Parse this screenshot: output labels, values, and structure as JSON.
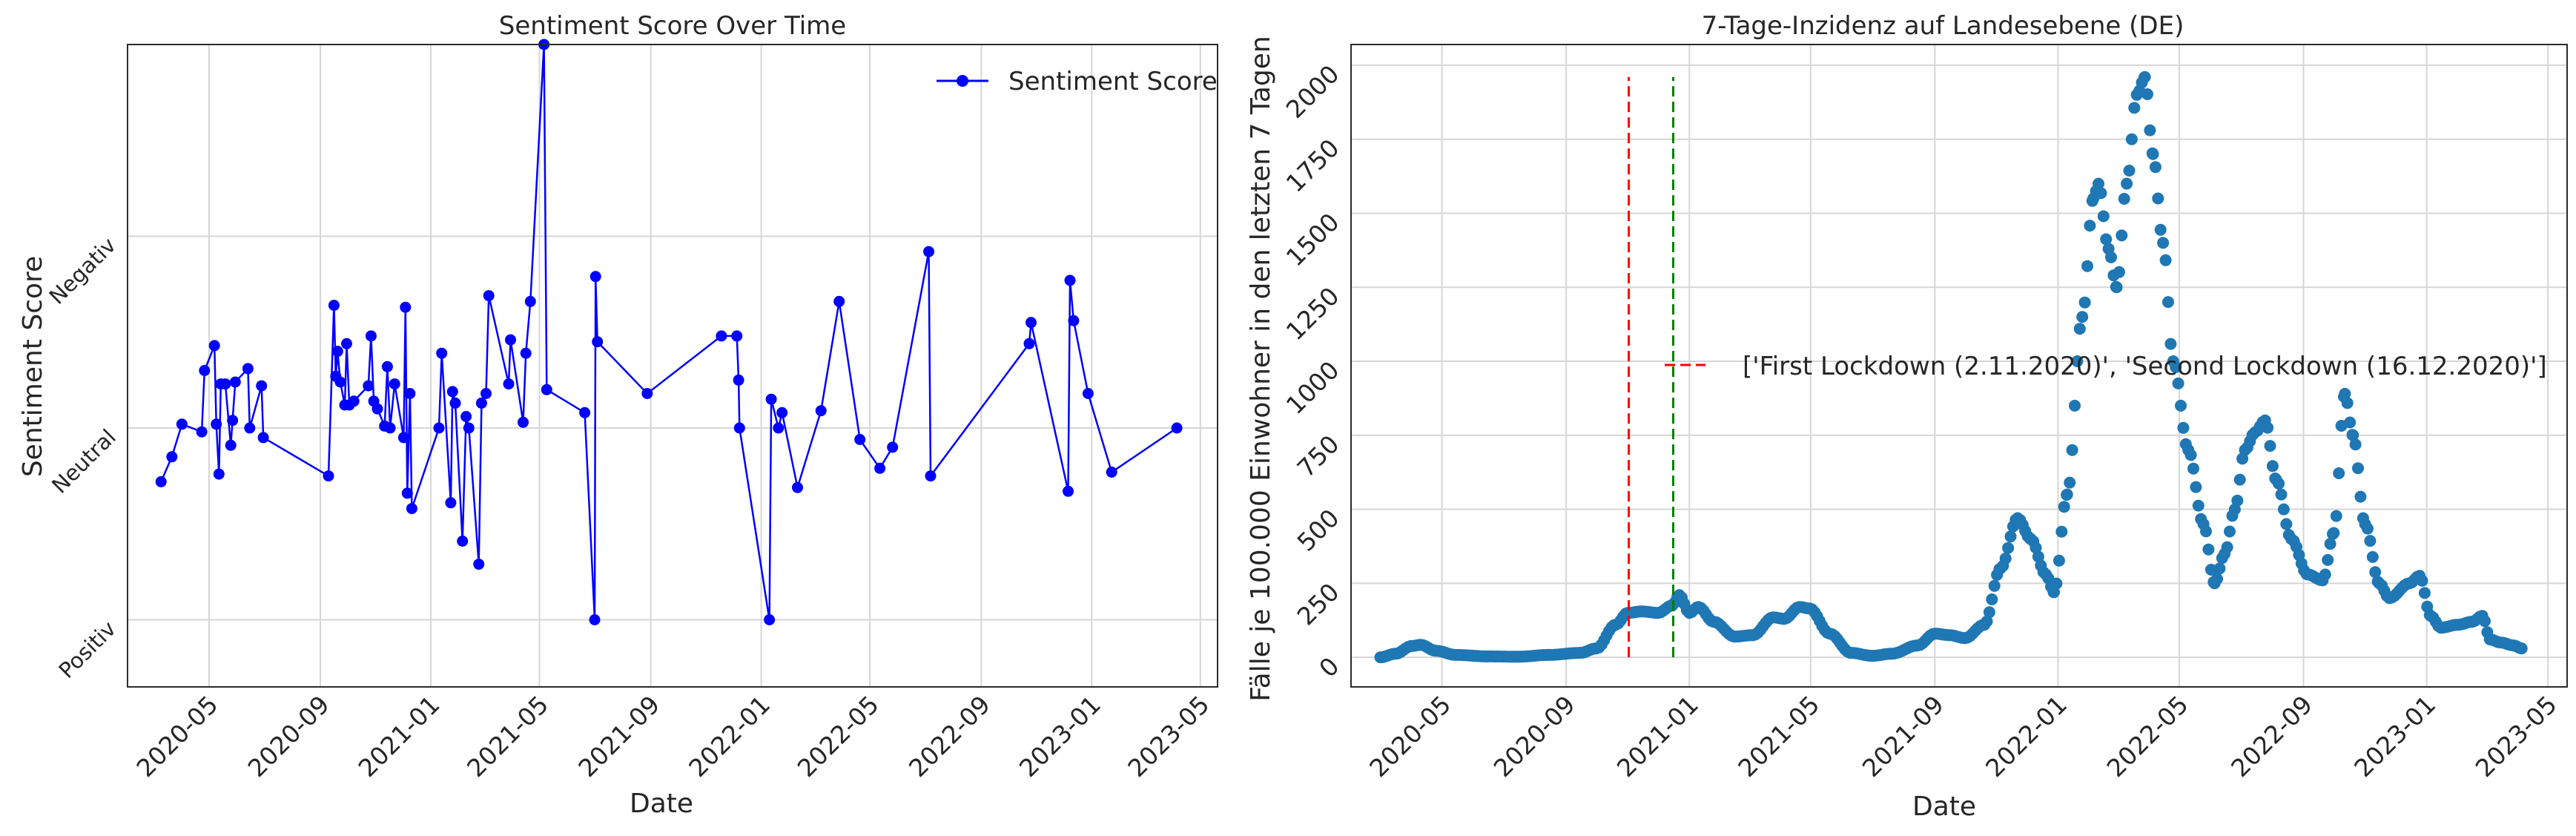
{
  "chart_data": [
    {
      "type": "line",
      "title": "Sentiment Score Over Time",
      "xlabel": "Date",
      "ylabel": "Sentiment Score",
      "x_ticks": [
        "2020-05",
        "2020-09",
        "2021-01",
        "2021-05",
        "2021-09",
        "2022-01",
        "2022-05",
        "2022-09",
        "2023-01",
        "2023-05"
      ],
      "y_ticks": [
        {
          "label": "Positiv",
          "value": -1
        },
        {
          "label": "Neutral",
          "value": 0
        },
        {
          "label": "Negativ",
          "value": 1
        }
      ],
      "xlim": [
        "2020-02-01",
        "2023-05-20"
      ],
      "ylim": [
        -1.35,
        2.0
      ],
      "grid": true,
      "legend": "top-right",
      "series": [
        {
          "name": "Sentiment Score",
          "color": "#0000ff",
          "points": [
            [
              "2020-03-09",
              -0.28
            ],
            [
              "2020-03-21",
              -0.15
            ],
            [
              "2020-04-01",
              0.02
            ],
            [
              "2020-04-23",
              -0.02
            ],
            [
              "2020-04-26",
              0.3
            ],
            [
              "2020-05-07",
              0.43
            ],
            [
              "2020-05-09",
              0.02
            ],
            [
              "2020-05-12",
              -0.24
            ],
            [
              "2020-05-14",
              0.23
            ],
            [
              "2020-05-19",
              0.23
            ],
            [
              "2020-05-25",
              -0.09
            ],
            [
              "2020-05-27",
              0.04
            ],
            [
              "2020-05-30",
              0.24
            ],
            [
              "2020-06-13",
              0.31
            ],
            [
              "2020-06-15",
              0.0
            ],
            [
              "2020-06-28",
              0.22
            ],
            [
              "2020-06-30",
              -0.05
            ],
            [
              "2020-09-10",
              -0.25
            ],
            [
              "2020-09-16",
              0.64
            ],
            [
              "2020-09-18",
              0.27
            ],
            [
              "2020-09-20",
              0.4
            ],
            [
              "2020-09-23",
              0.24
            ],
            [
              "2020-09-28",
              0.12
            ],
            [
              "2020-09-30",
              0.44
            ],
            [
              "2020-10-03",
              0.12
            ],
            [
              "2020-10-08",
              0.14
            ],
            [
              "2020-10-24",
              0.22
            ],
            [
              "2020-10-27",
              0.48
            ],
            [
              "2020-10-30",
              0.14
            ],
            [
              "2020-11-03",
              0.1
            ],
            [
              "2020-11-11",
              0.01
            ],
            [
              "2020-11-14",
              0.32
            ],
            [
              "2020-11-17",
              0.0
            ],
            [
              "2020-11-22",
              0.23
            ],
            [
              "2020-12-02",
              -0.05
            ],
            [
              "2020-12-04",
              0.63
            ],
            [
              "2020-12-06",
              -0.34
            ],
            [
              "2020-12-09",
              0.18
            ],
            [
              "2020-12-11",
              -0.42
            ],
            [
              "2021-01-10",
              0.0
            ],
            [
              "2021-01-13",
              0.39
            ],
            [
              "2021-01-23",
              -0.39
            ],
            [
              "2021-01-25",
              0.19
            ],
            [
              "2021-01-28",
              0.13
            ],
            [
              "2021-02-05",
              -0.59
            ],
            [
              "2021-02-09",
              0.06
            ],
            [
              "2021-02-12",
              0.0
            ],
            [
              "2021-02-23",
              -0.71
            ],
            [
              "2021-02-26",
              0.13
            ],
            [
              "2021-03-03",
              0.18
            ],
            [
              "2021-03-06",
              0.69
            ],
            [
              "2021-03-28",
              0.23
            ],
            [
              "2021-03-30",
              0.46
            ],
            [
              "2021-04-13",
              0.03
            ],
            [
              "2021-04-16",
              0.39
            ],
            [
              "2021-04-21",
              0.66
            ],
            [
              "2021-05-06",
              2.0
            ],
            [
              "2021-05-09",
              0.2
            ],
            [
              "2021-06-20",
              0.08
            ],
            [
              "2021-07-01",
              -1.0
            ],
            [
              "2021-07-02",
              0.79
            ],
            [
              "2021-07-04",
              0.45
            ],
            [
              "2021-08-28",
              0.18
            ],
            [
              "2021-11-18",
              0.48
            ],
            [
              "2021-12-05",
              0.48
            ],
            [
              "2021-12-07",
              0.25
            ],
            [
              "2021-12-08",
              0.0
            ],
            [
              "2022-01-10",
              -1.0
            ],
            [
              "2022-01-12",
              0.15
            ],
            [
              "2022-01-20",
              0.0
            ],
            [
              "2022-01-24",
              0.08
            ],
            [
              "2022-02-10",
              -0.31
            ],
            [
              "2022-03-08",
              0.09
            ],
            [
              "2022-03-28",
              0.66
            ],
            [
              "2022-04-20",
              -0.06
            ],
            [
              "2022-05-12",
              -0.21
            ],
            [
              "2022-05-26",
              -0.1
            ],
            [
              "2022-07-05",
              0.92
            ],
            [
              "2022-07-07",
              -0.25
            ],
            [
              "2022-10-24",
              0.44
            ],
            [
              "2022-10-26",
              0.55
            ],
            [
              "2022-12-06",
              -0.33
            ],
            [
              "2022-12-08",
              0.77
            ],
            [
              "2022-12-12",
              0.56
            ],
            [
              "2022-12-28",
              0.18
            ],
            [
              "2023-01-23",
              -0.23
            ],
            [
              "2023-04-05",
              0.0
            ]
          ]
        }
      ]
    },
    {
      "type": "scatter",
      "title": "7-Tage-Inzidenz auf Landesebene (DE)",
      "xlabel": "Date",
      "ylabel": "Fälle je 100.000 Einwohner in den letzten 7 Tagen",
      "x_ticks": [
        "2020-05",
        "2020-09",
        "2021-01",
        "2021-05",
        "2021-09",
        "2022-01",
        "2022-05",
        "2022-09",
        "2023-01",
        "2023-05"
      ],
      "y_ticks": [
        0,
        250,
        500,
        750,
        1000,
        1250,
        1500,
        1750,
        2000
      ],
      "xlim": [
        "2020-02-01",
        "2023-05-20"
      ],
      "ylim": [
        -100,
        2070
      ],
      "grid": true,
      "legend": "center",
      "legend_label": "['First Lockdown (2.11.2020)', 'Second Lockdown (16.12.2020)']",
      "vlines": [
        {
          "date": "2020-11-02",
          "color": "#ff0000",
          "ymin": 0,
          "ymax": 1960
        },
        {
          "date": "2020-12-16",
          "color": "#008000",
          "ymin": 0,
          "ymax": 1960
        }
      ],
      "series": [
        {
          "name": "Fälle je 100.000 Einwohner in den letzten 7 Tagen",
          "color": "#1f77b4",
          "keypoints": [
            [
              "2020-03-01",
              0
            ],
            [
              "2020-03-16",
              12
            ],
            [
              "2020-04-01",
              38
            ],
            [
              "2020-04-10",
              42
            ],
            [
              "2020-04-25",
              22
            ],
            [
              "2020-05-15",
              8
            ],
            [
              "2020-06-15",
              3
            ],
            [
              "2020-07-15",
              2
            ],
            [
              "2020-08-15",
              8
            ],
            [
              "2020-09-15",
              15
            ],
            [
              "2020-10-01",
              30
            ],
            [
              "2020-10-20",
              110
            ],
            [
              "2020-11-01",
              150
            ],
            [
              "2020-11-15",
              155
            ],
            [
              "2020-12-01",
              150
            ],
            [
              "2020-12-15",
              175
            ],
            [
              "2020-12-22",
              210
            ],
            [
              "2021-01-01",
              150
            ],
            [
              "2021-01-10",
              170
            ],
            [
              "2021-01-25",
              120
            ],
            [
              "2021-02-15",
              70
            ],
            [
              "2021-03-05",
              75
            ],
            [
              "2021-03-25",
              135
            ],
            [
              "2021-04-05",
              130
            ],
            [
              "2021-04-20",
              170
            ],
            [
              "2021-04-30",
              165
            ],
            [
              "2021-05-20",
              80
            ],
            [
              "2021-06-10",
              15
            ],
            [
              "2021-07-01",
              5
            ],
            [
              "2021-07-20",
              12
            ],
            [
              "2021-08-15",
              40
            ],
            [
              "2021-09-01",
              80
            ],
            [
              "2021-09-15",
              75
            ],
            [
              "2021-10-01",
              65
            ],
            [
              "2021-10-20",
              110
            ],
            [
              "2021-11-05",
              300
            ],
            [
              "2021-11-22",
              470
            ],
            [
              "2021-12-05",
              400
            ],
            [
              "2021-12-20",
              280
            ],
            [
              "2021-12-28",
              220
            ],
            [
              "2022-01-10",
              550
            ],
            [
              "2022-01-25",
              1150
            ],
            [
              "2022-02-05",
              1550
            ],
            [
              "2022-02-10",
              1600
            ],
            [
              "2022-02-20",
              1380
            ],
            [
              "2022-02-28",
              1250
            ],
            [
              "2022-03-10",
              1600
            ],
            [
              "2022-03-20",
              1900
            ],
            [
              "2022-03-28",
              1960
            ],
            [
              "2022-04-05",
              1700
            ],
            [
              "2022-04-15",
              1400
            ],
            [
              "2022-04-25",
              1000
            ],
            [
              "2022-05-10",
              700
            ],
            [
              "2022-05-25",
              450
            ],
            [
              "2022-06-05",
              250
            ],
            [
              "2022-06-15",
              350
            ],
            [
              "2022-06-25",
              500
            ],
            [
              "2022-07-05",
              700
            ],
            [
              "2022-07-15",
              760
            ],
            [
              "2022-07-25",
              800
            ],
            [
              "2022-08-05",
              600
            ],
            [
              "2022-08-20",
              400
            ],
            [
              "2022-09-05",
              280
            ],
            [
              "2022-09-20",
              260
            ],
            [
              "2022-10-01",
              420
            ],
            [
              "2022-10-12",
              890
            ],
            [
              "2022-10-20",
              750
            ],
            [
              "2022-11-01",
              450
            ],
            [
              "2022-11-15",
              250
            ],
            [
              "2022-11-25",
              200
            ],
            [
              "2022-12-15",
              250
            ],
            [
              "2022-12-25",
              275
            ],
            [
              "2023-01-05",
              140
            ],
            [
              "2023-01-15",
              100
            ],
            [
              "2023-02-01",
              110
            ],
            [
              "2023-02-15",
              120
            ],
            [
              "2023-02-25",
              140
            ],
            [
              "2023-03-05",
              60
            ],
            [
              "2023-03-15",
              50
            ],
            [
              "2023-03-28",
              40
            ],
            [
              "2023-04-05",
              30
            ]
          ]
        }
      ]
    }
  ]
}
